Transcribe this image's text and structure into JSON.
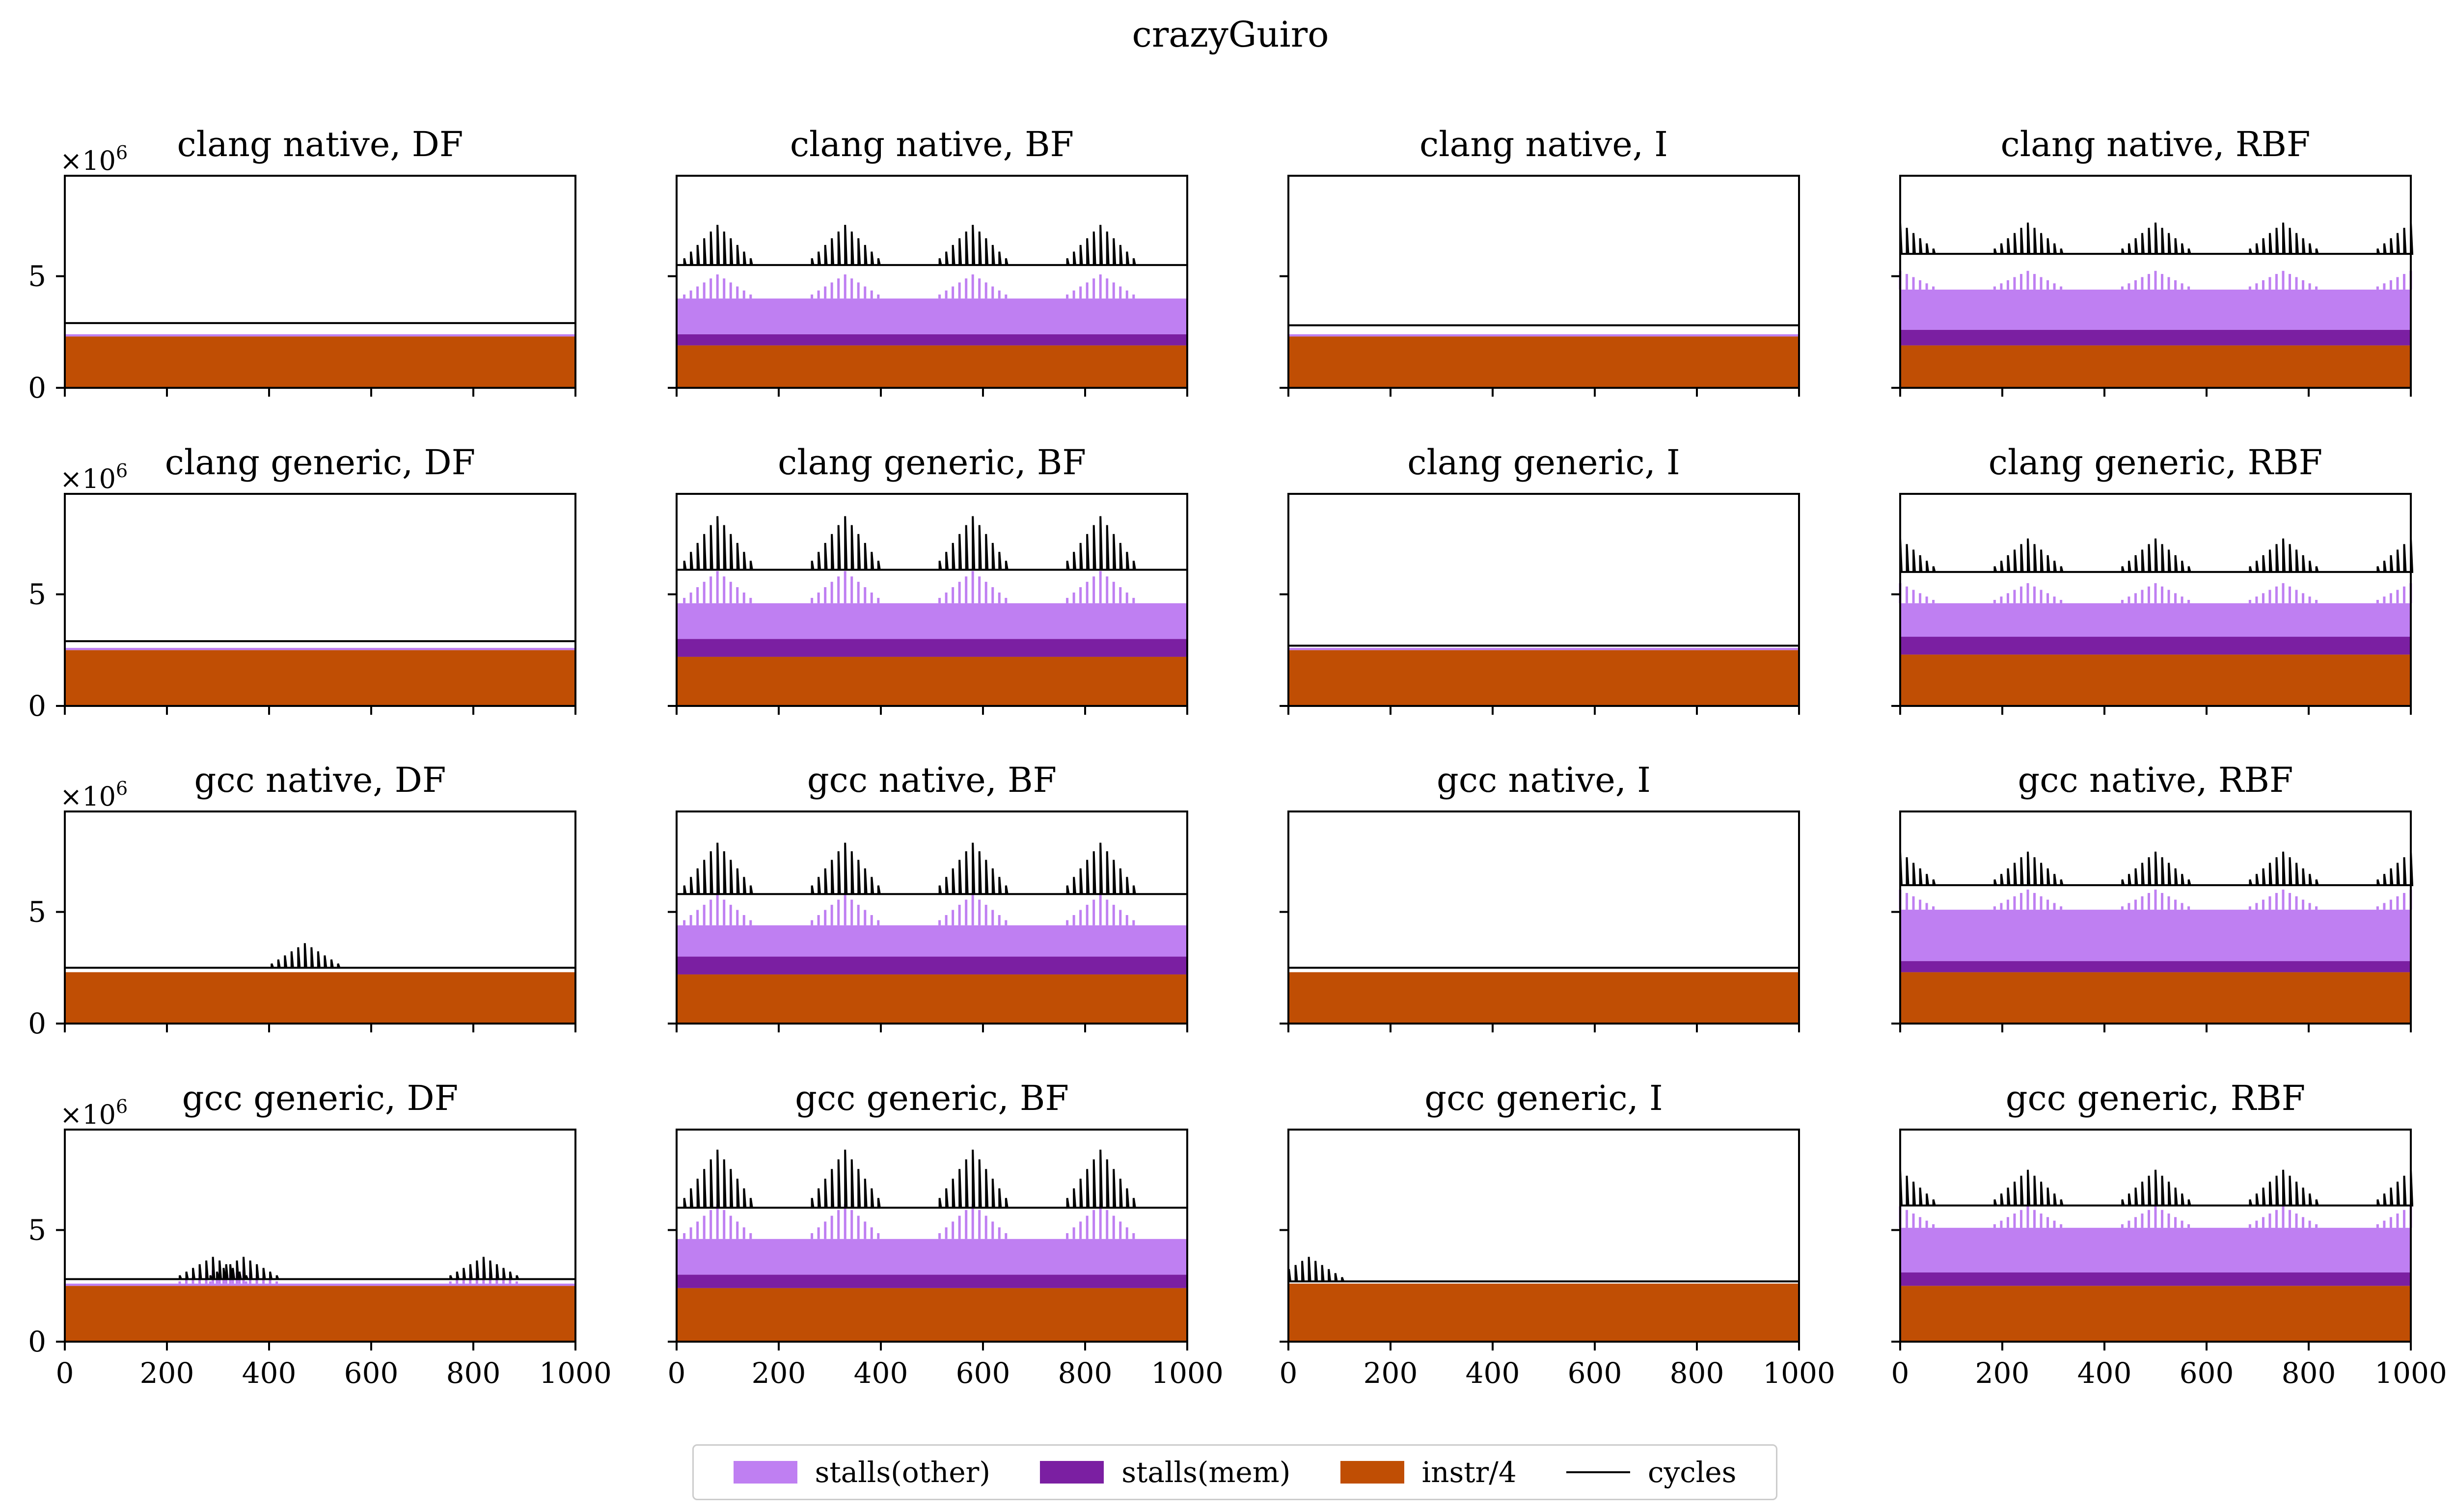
{
  "figure": {
    "title": "crazyGuiro"
  },
  "legend": {
    "stalls_other": {
      "label": "stalls(other)",
      "color": "#bf7ff2"
    },
    "stalls_mem": {
      "label": "stalls(mem)",
      "color": "#7b1fa2"
    },
    "instr": {
      "label": "instr/4",
      "color": "#c04e04"
    },
    "cycles": {
      "label": "cycles",
      "color": "#000000"
    }
  },
  "chart_data": [
    {
      "type": "area",
      "title": "clang native, DF",
      "ylim": [
        0,
        9.5
      ],
      "xlim": [
        0,
        1000
      ],
      "y_exponent_label": "×10",
      "y_exponent": "6",
      "yticks": [
        0,
        5
      ],
      "xticks": [
        0,
        200,
        400,
        600,
        800,
        1000
      ],
      "series": [
        {
          "name": "instr/4",
          "values": [
            2.3
          ]
        },
        {
          "name": "stalls(mem)",
          "values": [
            0.0
          ]
        },
        {
          "name": "stalls(other)",
          "values": [
            0.1
          ]
        },
        {
          "name": "cycles",
          "values": [
            2.9
          ]
        }
      ],
      "spike_centers": [],
      "spike_height": 0.2
    },
    {
      "type": "area",
      "title": "clang native, BF",
      "ylim": [
        0,
        9.5
      ],
      "xlim": [
        0,
        1000
      ],
      "y_exponent_label": "×10",
      "y_exponent": "6",
      "yticks": [
        0,
        5
      ],
      "xticks": [
        0,
        200,
        400,
        600,
        800,
        1000
      ],
      "series": [
        {
          "name": "instr/4",
          "values": [
            1.9
          ]
        },
        {
          "name": "stalls(mem)",
          "values": [
            0.5
          ]
        },
        {
          "name": "stalls(other)",
          "values": [
            1.6
          ]
        },
        {
          "name": "cycles",
          "values": [
            5.5
          ]
        }
      ],
      "spike_centers": [
        80,
        330,
        580,
        830
      ],
      "spike_height": 1.8
    },
    {
      "type": "area",
      "title": "clang native, I",
      "ylim": [
        0,
        9.5
      ],
      "xlim": [
        0,
        1000
      ],
      "y_exponent_label": "×10",
      "y_exponent": "6",
      "yticks": [
        0,
        5
      ],
      "xticks": [
        0,
        200,
        400,
        600,
        800,
        1000
      ],
      "series": [
        {
          "name": "instr/4",
          "values": [
            2.3
          ]
        },
        {
          "name": "stalls(mem)",
          "values": [
            0.0
          ]
        },
        {
          "name": "stalls(other)",
          "values": [
            0.1
          ]
        },
        {
          "name": "cycles",
          "values": [
            2.8
          ]
        }
      ],
      "spike_centers": [],
      "spike_height": 0.3
    },
    {
      "type": "area",
      "title": "clang native, RBF",
      "ylim": [
        0,
        9.5
      ],
      "xlim": [
        0,
        1000
      ],
      "y_exponent_label": "×10",
      "y_exponent": "6",
      "yticks": [
        0,
        5
      ],
      "xticks": [
        0,
        200,
        400,
        600,
        800,
        1000
      ],
      "series": [
        {
          "name": "instr/4",
          "values": [
            1.9
          ]
        },
        {
          "name": "stalls(mem)",
          "values": [
            0.7
          ]
        },
        {
          "name": "stalls(other)",
          "values": [
            1.8
          ]
        },
        {
          "name": "cycles",
          "values": [
            6.0
          ]
        }
      ],
      "spike_centers": [
        0,
        250,
        500,
        750,
        1000
      ],
      "spike_height": 1.4
    },
    {
      "type": "area",
      "title": "clang generic, DF",
      "ylim": [
        0,
        9.5
      ],
      "xlim": [
        0,
        1000
      ],
      "y_exponent_label": "×10",
      "y_exponent": "6",
      "yticks": [
        0,
        5
      ],
      "xticks": [
        0,
        200,
        400,
        600,
        800,
        1000
      ],
      "series": [
        {
          "name": "instr/4",
          "values": [
            2.5
          ]
        },
        {
          "name": "stalls(mem)",
          "values": [
            0.0
          ]
        },
        {
          "name": "stalls(other)",
          "values": [
            0.1
          ]
        },
        {
          "name": "cycles",
          "values": [
            2.9
          ]
        }
      ],
      "spike_centers": [],
      "spike_height": 0.15
    },
    {
      "type": "area",
      "title": "clang generic, BF",
      "ylim": [
        0,
        9.5
      ],
      "xlim": [
        0,
        1000
      ],
      "y_exponent_label": "×10",
      "y_exponent": "6",
      "yticks": [
        0,
        5
      ],
      "xticks": [
        0,
        200,
        400,
        600,
        800,
        1000
      ],
      "series": [
        {
          "name": "instr/4",
          "values": [
            2.2
          ]
        },
        {
          "name": "stalls(mem)",
          "values": [
            0.8
          ]
        },
        {
          "name": "stalls(other)",
          "values": [
            1.6
          ]
        },
        {
          "name": "cycles",
          "values": [
            6.1
          ]
        }
      ],
      "spike_centers": [
        80,
        330,
        580,
        830
      ],
      "spike_height": 2.4
    },
    {
      "type": "area",
      "title": "clang generic, I",
      "ylim": [
        0,
        9.5
      ],
      "xlim": [
        0,
        1000
      ],
      "y_exponent_label": "×10",
      "y_exponent": "6",
      "yticks": [
        0,
        5
      ],
      "xticks": [
        0,
        200,
        400,
        600,
        800,
        1000
      ],
      "series": [
        {
          "name": "instr/4",
          "values": [
            2.5
          ]
        },
        {
          "name": "stalls(mem)",
          "values": [
            0.0
          ]
        },
        {
          "name": "stalls(other)",
          "values": [
            0.1
          ]
        },
        {
          "name": "cycles",
          "values": [
            2.7
          ]
        }
      ],
      "spike_centers": [],
      "spike_height": 0.3
    },
    {
      "type": "area",
      "title": "clang generic, RBF",
      "ylim": [
        0,
        9.5
      ],
      "xlim": [
        0,
        1000
      ],
      "y_exponent_label": "×10",
      "y_exponent": "6",
      "yticks": [
        0,
        5
      ],
      "xticks": [
        0,
        200,
        400,
        600,
        800,
        1000
      ],
      "series": [
        {
          "name": "instr/4",
          "values": [
            2.3
          ]
        },
        {
          "name": "stalls(mem)",
          "values": [
            0.8
          ]
        },
        {
          "name": "stalls(other)",
          "values": [
            1.5
          ]
        },
        {
          "name": "cycles",
          "values": [
            6.0
          ]
        }
      ],
      "spike_centers": [
        0,
        250,
        500,
        750,
        1000
      ],
      "spike_height": 1.5
    },
    {
      "type": "area",
      "title": "gcc native, DF",
      "ylim": [
        0,
        9.5
      ],
      "xlim": [
        0,
        1000
      ],
      "y_exponent_label": "×10",
      "y_exponent": "6",
      "yticks": [
        0,
        5
      ],
      "xticks": [
        0,
        200,
        400,
        600,
        800,
        1000
      ],
      "series": [
        {
          "name": "instr/4",
          "values": [
            2.3
          ]
        },
        {
          "name": "stalls(mem)",
          "values": [
            0.0
          ]
        },
        {
          "name": "stalls(other)",
          "values": [
            0.0
          ]
        },
        {
          "name": "cycles",
          "values": [
            2.5
          ]
        }
      ],
      "spike_centers": [
        470
      ],
      "spike_height": 1.1
    },
    {
      "type": "area",
      "title": "gcc native, BF",
      "ylim": [
        0,
        9.5
      ],
      "xlim": [
        0,
        1000
      ],
      "y_exponent_label": "×10",
      "y_exponent": "6",
      "yticks": [
        0,
        5
      ],
      "xticks": [
        0,
        200,
        400,
        600,
        800,
        1000
      ],
      "series": [
        {
          "name": "instr/4",
          "values": [
            2.2
          ]
        },
        {
          "name": "stalls(mem)",
          "values": [
            0.8
          ]
        },
        {
          "name": "stalls(other)",
          "values": [
            1.4
          ]
        },
        {
          "name": "cycles",
          "values": [
            5.8
          ]
        }
      ],
      "spike_centers": [
        80,
        330,
        580,
        830
      ],
      "spike_height": 2.3
    },
    {
      "type": "area",
      "title": "gcc native, I",
      "ylim": [
        0,
        9.5
      ],
      "xlim": [
        0,
        1000
      ],
      "y_exponent_label": "×10",
      "y_exponent": "6",
      "yticks": [
        0,
        5
      ],
      "xticks": [
        0,
        200,
        400,
        600,
        800,
        1000
      ],
      "series": [
        {
          "name": "instr/4",
          "values": [
            2.3
          ]
        },
        {
          "name": "stalls(mem)",
          "values": [
            0.0
          ]
        },
        {
          "name": "stalls(other)",
          "values": [
            0.0
          ]
        },
        {
          "name": "cycles",
          "values": [
            2.5
          ]
        }
      ],
      "spike_centers": [],
      "spike_height": 0.2
    },
    {
      "type": "area",
      "title": "gcc native, RBF",
      "ylim": [
        0,
        9.5
      ],
      "xlim": [
        0,
        1000
      ],
      "y_exponent_label": "×10",
      "y_exponent": "6",
      "yticks": [
        0,
        5
      ],
      "xticks": [
        0,
        200,
        400,
        600,
        800,
        1000
      ],
      "series": [
        {
          "name": "instr/4",
          "values": [
            2.3
          ]
        },
        {
          "name": "stalls(mem)",
          "values": [
            0.5
          ]
        },
        {
          "name": "stalls(other)",
          "values": [
            2.3
          ]
        },
        {
          "name": "cycles",
          "values": [
            6.2
          ]
        }
      ],
      "spike_centers": [
        0,
        250,
        500,
        750,
        1000
      ],
      "spike_height": 1.5
    },
    {
      "type": "area",
      "title": "gcc generic, DF",
      "ylim": [
        0,
        9.5
      ],
      "xlim": [
        0,
        1000
      ],
      "y_exponent_label": "×10",
      "y_exponent": "6",
      "yticks": [
        0,
        5
      ],
      "xticks": [
        0,
        200,
        400,
        600,
        800,
        1000
      ],
      "series": [
        {
          "name": "instr/4",
          "values": [
            2.5
          ]
        },
        {
          "name": "stalls(mem)",
          "values": [
            0.0
          ]
        },
        {
          "name": "stalls(other)",
          "values": [
            0.1
          ]
        },
        {
          "name": "cycles",
          "values": [
            2.8
          ]
        }
      ],
      "spike_centers": [
        290,
        350,
        820
      ],
      "spike_height": 1.0
    },
    {
      "type": "area",
      "title": "gcc generic, BF",
      "ylim": [
        0,
        9.5
      ],
      "xlim": [
        0,
        1000
      ],
      "y_exponent_label": "×10",
      "y_exponent": "6",
      "yticks": [
        0,
        5
      ],
      "xticks": [
        0,
        200,
        400,
        600,
        800,
        1000
      ],
      "series": [
        {
          "name": "instr/4",
          "values": [
            2.4
          ]
        },
        {
          "name": "stalls(mem)",
          "values": [
            0.6
          ]
        },
        {
          "name": "stalls(other)",
          "values": [
            1.6
          ]
        },
        {
          "name": "cycles",
          "values": [
            6.0
          ]
        }
      ],
      "spike_centers": [
        80,
        330,
        580,
        830
      ],
      "spike_height": 2.6
    },
    {
      "type": "area",
      "title": "gcc generic, I",
      "ylim": [
        0,
        9.5
      ],
      "xlim": [
        0,
        1000
      ],
      "y_exponent_label": "×10",
      "y_exponent": "6",
      "yticks": [
        0,
        5
      ],
      "xticks": [
        0,
        200,
        400,
        600,
        800,
        1000
      ],
      "series": [
        {
          "name": "instr/4",
          "values": [
            2.6
          ]
        },
        {
          "name": "stalls(mem)",
          "values": [
            0.0
          ]
        },
        {
          "name": "stalls(other)",
          "values": [
            0.0
          ]
        },
        {
          "name": "cycles",
          "values": [
            2.7
          ]
        }
      ],
      "spike_centers": [
        40
      ],
      "spike_height": 1.1
    },
    {
      "type": "area",
      "title": "gcc generic, RBF",
      "ylim": [
        0,
        9.5
      ],
      "xlim": [
        0,
        1000
      ],
      "y_exponent_label": "×10",
      "y_exponent": "6",
      "yticks": [
        0,
        5
      ],
      "xticks": [
        0,
        200,
        400,
        600,
        800,
        1000
      ],
      "series": [
        {
          "name": "instr/4",
          "values": [
            2.5
          ]
        },
        {
          "name": "stalls(mem)",
          "values": [
            0.6
          ]
        },
        {
          "name": "stalls(other)",
          "values": [
            2.0
          ]
        },
        {
          "name": "cycles",
          "values": [
            6.1
          ]
        }
      ],
      "spike_centers": [
        0,
        250,
        500,
        750,
        1000
      ],
      "spike_height": 1.6
    }
  ]
}
